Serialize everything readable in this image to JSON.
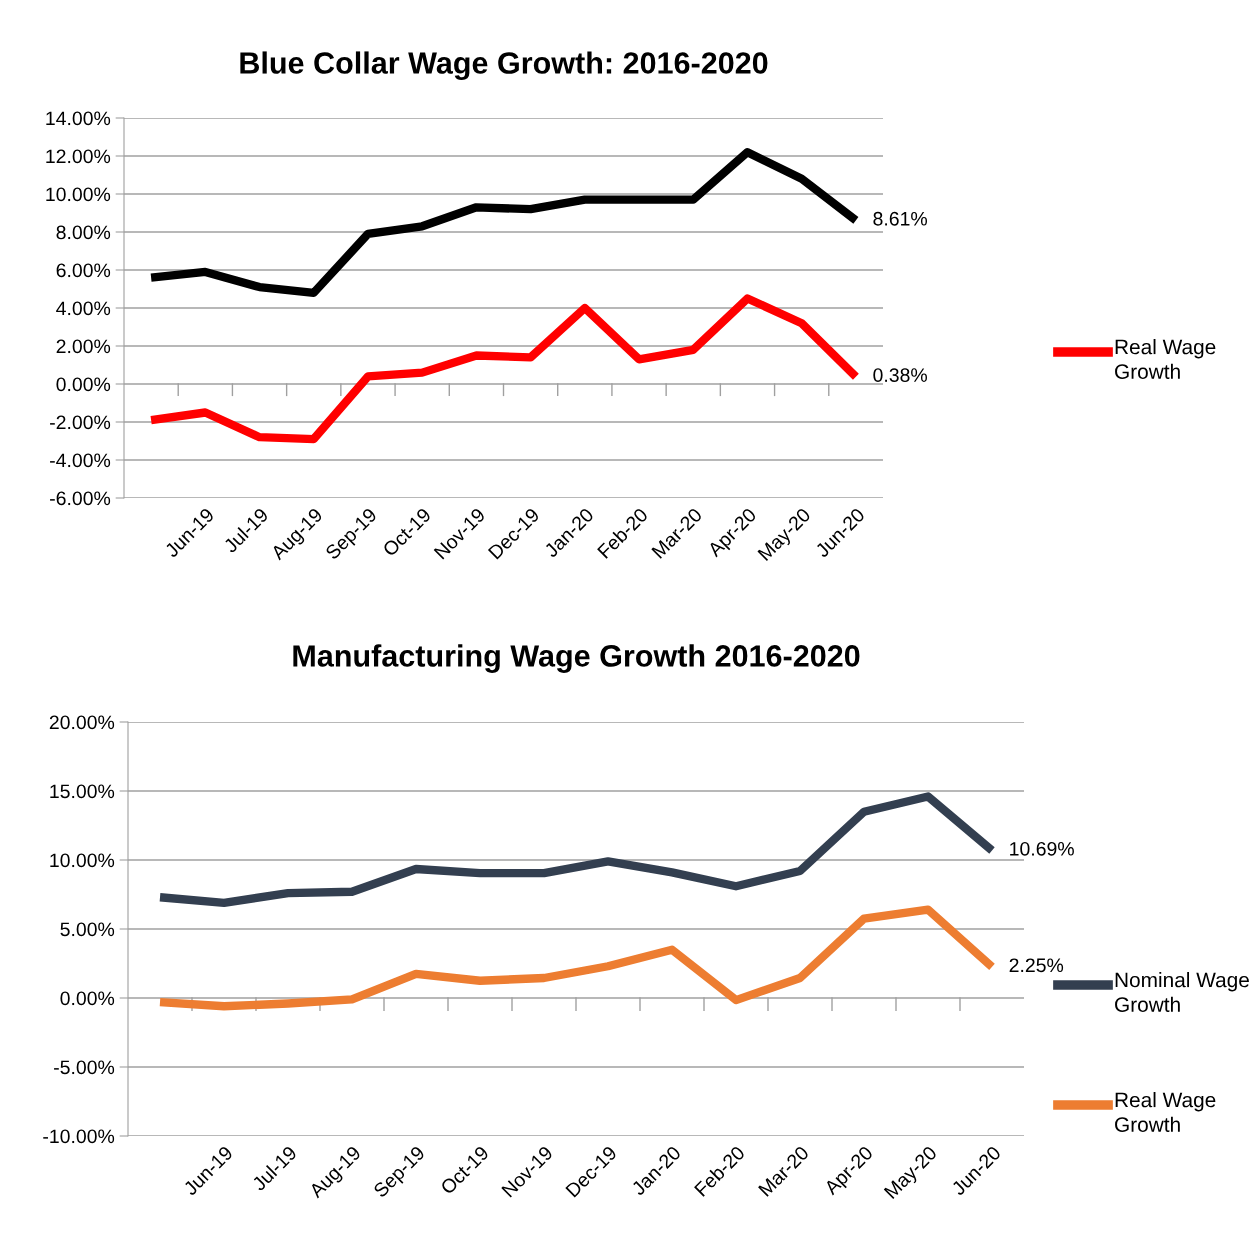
{
  "chart_data": [
    {
      "type": "line",
      "title": "Blue Collar Wage Growth: 2016-2020",
      "categories": [
        null,
        "Jun-19",
        "Jul-19",
        "Aug-19",
        "Sep-19",
        "Oct-19",
        "Nov-19",
        "Dec-19",
        "Jan-20",
        "Feb-20",
        "Mar-20",
        "Apr-20",
        "May-20",
        "Jun-20"
      ],
      "series": [
        {
          "color": "#000000",
          "values": [
            5.6,
            5.9,
            5.1,
            4.8,
            7.9,
            8.3,
            9.3,
            9.2,
            9.7,
            9.7,
            9.7,
            12.2,
            10.8,
            8.61
          ],
          "value_labels": [
            null,
            null,
            null,
            null,
            null,
            null,
            null,
            null,
            null,
            null,
            null,
            null,
            null,
            "8.61%"
          ]
        },
        {
          "name": "Real Wage Growth",
          "color": "#ff0000",
          "values": [
            -1.9,
            -1.5,
            -2.8,
            -2.9,
            0.4,
            0.6,
            1.5,
            1.4,
            4.0,
            1.3,
            1.8,
            4.5,
            3.2,
            0.38
          ],
          "value_labels": [
            null,
            null,
            null,
            null,
            null,
            null,
            null,
            null,
            null,
            null,
            null,
            null,
            null,
            "0.38%"
          ]
        }
      ],
      "ylim": [
        -6,
        14
      ],
      "yticks": [
        {
          "value": -6,
          "label": "-6.00%"
        },
        {
          "value": -4,
          "label": "-4.00%"
        },
        {
          "value": -2,
          "label": "-2.00%"
        },
        {
          "value": 0,
          "label": "0.00%"
        },
        {
          "value": 2,
          "label": "2.00%"
        },
        {
          "value": 4,
          "label": "4.00%"
        },
        {
          "value": 6,
          "label": "6.00%"
        },
        {
          "value": 8,
          "label": "8.00%"
        },
        {
          "value": 10,
          "label": "10.00%"
        },
        {
          "value": 12,
          "label": "12.00%"
        },
        {
          "value": 14,
          "label": "14.00%"
        }
      ],
      "grid": "y",
      "legend": "right",
      "marker": "none",
      "line_style": "solid"
    },
    {
      "type": "line",
      "title": "Manufacturing Wage Growth 2016-2020",
      "categories": [
        null,
        "Jun-19",
        "Jul-19",
        "Aug-19",
        "Sep-19",
        "Oct-19",
        "Nov-19",
        "Dec-19",
        "Jan-20",
        "Feb-20",
        "Mar-20",
        "Apr-20",
        "May-20",
        "Jun-20"
      ],
      "series": [
        {
          "name": "Nominal Wage Growth",
          "color": "#333f50",
          "values": [
            7.3,
            6.9,
            7.6,
            7.7,
            9.35,
            9.05,
            9.05,
            9.9,
            9.1,
            8.1,
            9.2,
            13.5,
            14.6,
            10.69
          ],
          "value_labels": [
            null,
            null,
            null,
            null,
            null,
            null,
            null,
            null,
            null,
            null,
            null,
            null,
            null,
            "10.69%"
          ]
        },
        {
          "name": "Real Wage Growth",
          "color": "#ed7d31",
          "values": [
            -0.3,
            -0.6,
            -0.4,
            -0.1,
            1.75,
            1.25,
            1.45,
            2.3,
            3.5,
            -0.15,
            1.45,
            5.75,
            6.4,
            2.25
          ],
          "value_labels": [
            null,
            null,
            null,
            null,
            null,
            null,
            null,
            null,
            null,
            null,
            null,
            null,
            null,
            "2.25%"
          ]
        }
      ],
      "ylim": [
        -10,
        20
      ],
      "yticks": [
        {
          "value": -10,
          "label": "-10.00%"
        },
        {
          "value": -5,
          "label": "-5.00%"
        },
        {
          "value": 0,
          "label": "0.00%"
        },
        {
          "value": 5,
          "label": "5.00%"
        },
        {
          "value": 10,
          "label": "10.00%"
        },
        {
          "value": 15,
          "label": "15.00%"
        },
        {
          "value": 20,
          "label": "20.00%"
        }
      ],
      "grid": "y",
      "legend": "right",
      "marker": "none",
      "line_style": "solid"
    }
  ]
}
